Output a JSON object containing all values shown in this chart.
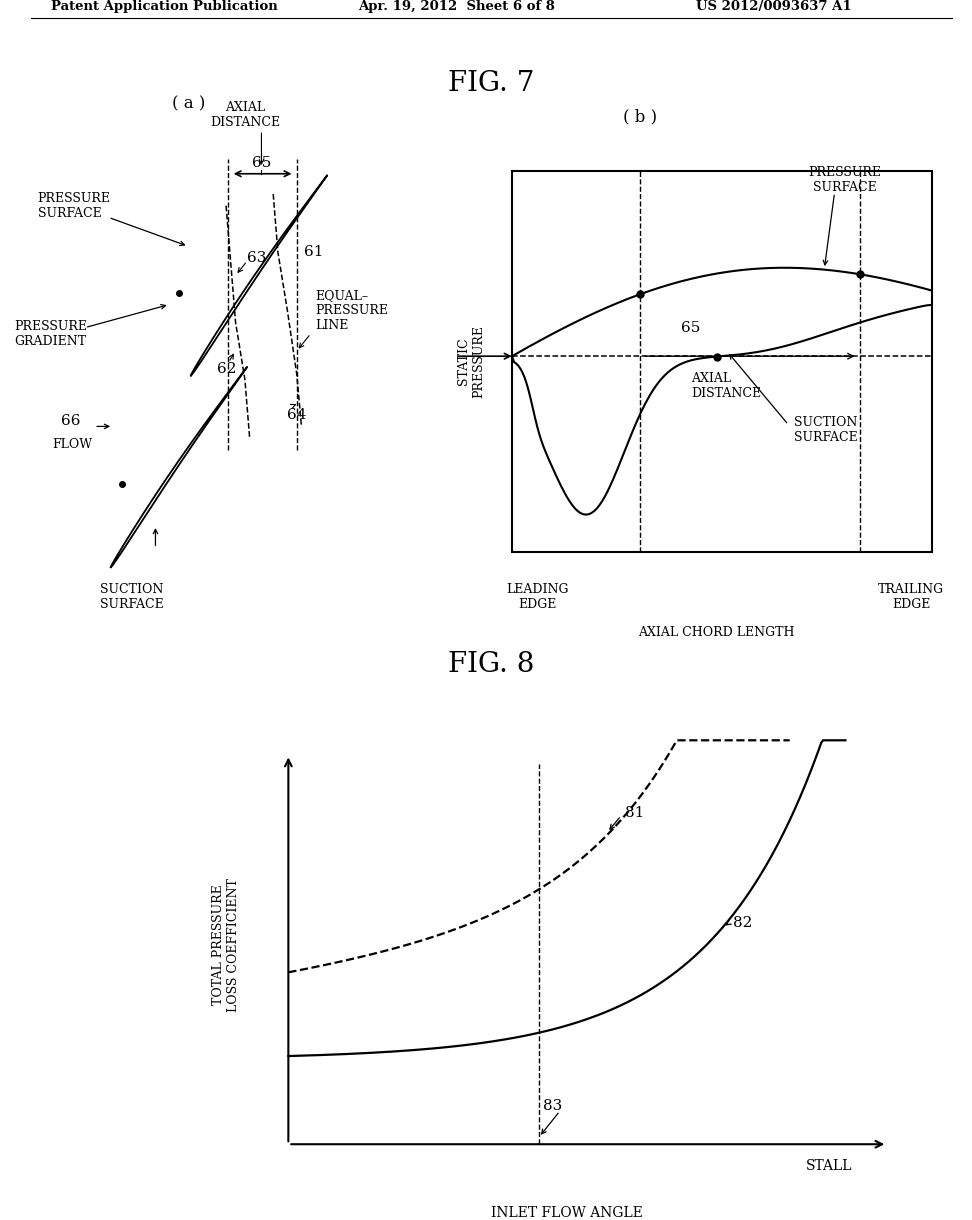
{
  "title_header": "Patent Application Publication",
  "date_header": "Apr. 19, 2012  Sheet 6 of 8",
  "patent_header": "US 2012/0093637 A1",
  "fig7_title": "FIG. 7",
  "fig8_title": "FIG. 8",
  "fig7a_label": "( a )",
  "fig7b_label": "( b )",
  "background_color": "#ffffff",
  "line_color": "#000000",
  "font_color": "#000000"
}
